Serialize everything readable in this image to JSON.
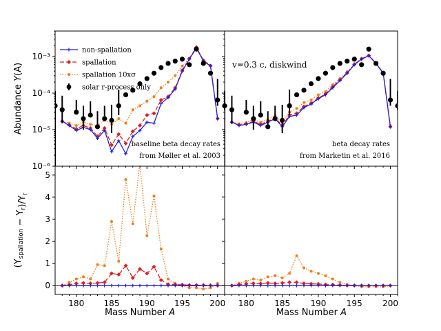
{
  "chart_data": [
    {
      "type": "line",
      "panel": "top-left",
      "yscale": "log",
      "xlim": [
        177,
        201
      ],
      "ylim": [
        1e-06,
        0.005
      ],
      "ylabel": "Abundance Y(A)",
      "xlabel": "",
      "yticks": [
        "10⁻⁶",
        "10⁻⁵",
        "10⁻⁴",
        "10⁻³"
      ],
      "annotation": [
        "baseline beta decay rates",
        "from Møller et al. 2003"
      ],
      "legend": {
        "position": "top-left"
      },
      "x": [
        178,
        179,
        180,
        181,
        182,
        183,
        184,
        185,
        186,
        187,
        188,
        189,
        190,
        191,
        192,
        193,
        194,
        195,
        196,
        197,
        198,
        199,
        200
      ],
      "series": [
        {
          "name": "non-spallation",
          "color": "#1f1fe0",
          "values": [
            1.7e-05,
            1.3e-05,
            9.5e-06,
            1.15e-05,
            1e-05,
            5.8e-06,
            9.5e-06,
            2.5e-06,
            5e-06,
            2.2e-06,
            6.5e-06,
            9.5e-06,
            1.6e-05,
            1.5e-05,
            5.2e-05,
            7.5e-05,
            0.00013,
            0.0004,
            0.00085,
            0.0017,
            0.00075,
            0.00055,
            2e-05
          ]
        },
        {
          "name": "spallation",
          "color": "#e01f1f",
          "values": [
            1.7e-05,
            1.35e-05,
            1.05e-05,
            1.3e-05,
            1.1e-05,
            6.5e-06,
            1.1e-05,
            3.8e-06,
            7.5e-06,
            4.2e-06,
            9e-06,
            1.3e-05,
            2.5e-05,
            2.8e-05,
            6.5e-05,
            8e-05,
            0.00014,
            0.00042,
            0.00088,
            0.0018,
            0.00078,
            0.00056,
            2e-05
          ]
        },
        {
          "name": "spallation 10xσ",
          "color": "#f07e1a",
          "values": [
            1.7e-05,
            1.5e-05,
            1.3e-05,
            1.6e-05,
            1.4e-05,
            1.3e-05,
            1.8e-05,
            1.4e-05,
            2e-05,
            1.5e-05,
            3.5e-05,
            4.5e-05,
            6e-05,
            8e-05,
            0.00014,
            0.0002,
            0.0003,
            0.00055,
            0.0009,
            0.00175,
            0.0008,
            0.00058,
            2e-05
          ]
        },
        {
          "name": "solar r-process only",
          "color": "#000000",
          "x": [
            177,
            178,
            180,
            181,
            182,
            183,
            184,
            185,
            186,
            187,
            188,
            189,
            190,
            191,
            192,
            193,
            194,
            195,
            196,
            197,
            198,
            199,
            200,
            201
          ],
          "values": [
            4.5e-05,
            3.5e-05,
            3e-05,
            2e-05,
            2.5e-05,
            1.2e-05,
            2e-05,
            1.8e-05,
            4.5e-05,
            9e-05,
            0.00012,
            0.00018,
            0.00025,
            0.00035,
            0.0005,
            0.00065,
            0.00075,
            0.00085,
            0.0006,
            0.0016,
            0.00065,
            0.00035,
            6.5e-05,
            4.5e-05
          ],
          "err_low": [
            4.5e-05,
            2e-05,
            1e-06,
            1e-05,
            1e-06,
            1e-06,
            1e-06,
            1e-05,
            2e-05,
            0,
            0,
            0,
            0,
            0,
            0,
            0,
            0,
            0,
            0,
            0,
            0,
            0,
            2e-05,
            1e-05
          ],
          "err_high": [
            7e-05,
            5e-05,
            3.5e-05,
            2.5e-05,
            3.5e-05,
            2e-05,
            2.5e-05,
            3e-05,
            8e-05,
            0,
            0,
            0,
            0,
            0,
            0,
            0,
            0,
            0,
            0,
            0,
            0,
            0,
            0.00018,
            7e-05
          ]
        }
      ]
    },
    {
      "type": "line",
      "panel": "top-right",
      "yscale": "log",
      "xlim": [
        177,
        201
      ],
      "ylim": [
        1e-06,
        0.005
      ],
      "annotation_top": "v=0.3 c, diskwind",
      "annotation": [
        "beta decay rates",
        "from Marketin et al. 2016"
      ],
      "x": [
        178,
        179,
        180,
        181,
        182,
        183,
        184,
        185,
        186,
        187,
        188,
        189,
        190,
        191,
        192,
        193,
        194,
        195,
        196,
        197,
        198,
        199,
        200
      ],
      "series": [
        {
          "name": "non-spallation",
          "color": "#1f1fe0",
          "values": [
            1.6e-05,
            1.3e-05,
            1.4e-05,
            1.6e-05,
            1.3e-05,
            1.6e-05,
            2e-05,
            1.2e-05,
            2.3e-05,
            2.5e-05,
            4e-05,
            5e-05,
            7e-05,
            9e-05,
            0.00014,
            0.00022,
            0.00035,
            0.0006,
            0.00085,
            0.00105,
            0.00065,
            0.00035,
            1.2e-05
          ]
        },
        {
          "name": "spallation",
          "color": "#e01f1f",
          "values": [
            1.6e-05,
            1.35e-05,
            1.45e-05,
            1.7e-05,
            1.4e-05,
            1.7e-05,
            2.1e-05,
            1.3e-05,
            2.5e-05,
            2.8e-05,
            4.3e-05,
            5.3e-05,
            7.3e-05,
            9.5e-05,
            0.00015,
            0.00023,
            0.00036,
            0.00061,
            0.00087,
            0.00107,
            0.00066,
            0.00036,
            1.2e-05
          ]
        },
        {
          "name": "spallation 10xσ",
          "color": "#f07e1a",
          "values": [
            1.6e-05,
            1.45e-05,
            1.55e-05,
            1.9e-05,
            1.6e-05,
            1.9e-05,
            2.4e-05,
            1.6e-05,
            3e-05,
            3.8e-05,
            5.5e-05,
            6.5e-05,
            9e-05,
            0.00011,
            0.00017,
            0.00025,
            0.00038,
            0.00063,
            0.00089,
            0.00108,
            0.00067,
            0.00037,
            1.3e-05
          ]
        },
        {
          "name": "solar r-process only",
          "color": "#000000",
          "x": [
            177,
            178,
            180,
            181,
            182,
            183,
            184,
            185,
            186,
            187,
            188,
            189,
            190,
            191,
            192,
            193,
            194,
            195,
            196,
            197,
            198,
            199,
            200,
            201
          ],
          "values": [
            4.5e-05,
            3.5e-05,
            3e-05,
            2e-05,
            2.5e-05,
            1.2e-05,
            2e-05,
            1.8e-05,
            4.5e-05,
            9e-05,
            0.00012,
            0.00018,
            0.00025,
            0.00035,
            0.0005,
            0.00065,
            0.00075,
            0.00085,
            0.0006,
            0.0016,
            0.00065,
            0.00035,
            6.5e-05,
            4.5e-05
          ],
          "err_low": [
            4.5e-05,
            2e-05,
            1e-06,
            1e-05,
            1e-06,
            1e-06,
            1e-06,
            1e-05,
            2e-05,
            0,
            0,
            0,
            0,
            0,
            0,
            0,
            0,
            0,
            0,
            0,
            0,
            0,
            2e-05,
            1e-05
          ],
          "err_high": [
            7e-05,
            5e-05,
            3.5e-05,
            2.5e-05,
            3.5e-05,
            2e-05,
            2.5e-05,
            3e-05,
            8e-05,
            0,
            0,
            0,
            0,
            0,
            0,
            0,
            0,
            0,
            0,
            0,
            0,
            0,
            0.00018,
            7e-05
          ]
        }
      ]
    },
    {
      "type": "line",
      "panel": "bottom-left",
      "yscale": "linear",
      "xlim": [
        177,
        201
      ],
      "ylim": [
        -0.4,
        5.4
      ],
      "ylabel": "(Y_spallation − Y_r)/Y_r",
      "xlabel": "Mass Number A",
      "xticks": [
        180,
        185,
        190,
        195,
        200
      ],
      "yticks": [
        0,
        1,
        2,
        3,
        4,
        5
      ],
      "x": [
        178,
        179,
        180,
        181,
        182,
        183,
        184,
        185,
        186,
        187,
        188,
        189,
        190,
        191,
        192,
        193,
        194,
        195,
        196,
        197,
        198,
        199,
        200
      ],
      "series": [
        {
          "name": "non-spallation",
          "color": "#1f1fe0",
          "values": [
            0,
            0,
            0,
            0,
            0,
            0,
            0,
            0,
            0,
            0,
            0,
            0,
            0,
            0,
            0,
            0,
            0,
            0,
            0,
            0,
            0,
            0,
            0
          ]
        },
        {
          "name": "spallation",
          "color": "#e01f1f",
          "values": [
            0.0,
            0.04,
            0.1,
            0.12,
            0.1,
            0.12,
            0.15,
            0.55,
            0.5,
            0.9,
            0.35,
            0.75,
            0.55,
            0.85,
            0.25,
            0.06,
            0.05,
            0.04,
            0.02,
            0.02,
            0.02,
            0.01,
            0.01
          ]
        },
        {
          "name": "spallation 10xσ",
          "color": "#f07e1a",
          "values": [
            0.0,
            0.15,
            0.3,
            0.4,
            0.3,
            0.95,
            0.9,
            2.9,
            1.1,
            4.8,
            2.8,
            5.5,
            2.25,
            4.05,
            1.65,
            0.3,
            0.1,
            0.0,
            -0.1,
            -0.1,
            -0.15,
            -0.1,
            0.1
          ]
        }
      ]
    },
    {
      "type": "line",
      "panel": "bottom-right",
      "yscale": "linear",
      "xlim": [
        177,
        201
      ],
      "ylim": [
        -0.4,
        5.4
      ],
      "xlabel": "Mass Number A",
      "xticks": [
        180,
        185,
        190,
        195,
        200
      ],
      "x": [
        178,
        179,
        180,
        181,
        182,
        183,
        184,
        185,
        186,
        187,
        188,
        189,
        190,
        191,
        192,
        193,
        194,
        195,
        196,
        197,
        198,
        199,
        200
      ],
      "series": [
        {
          "name": "non-spallation",
          "color": "#1f1fe0",
          "values": [
            0,
            0,
            0,
            0,
            0,
            0,
            0,
            0,
            0,
            0,
            0,
            0,
            0,
            0,
            0,
            0,
            0,
            0,
            0,
            0,
            0,
            0,
            0
          ]
        },
        {
          "name": "spallation",
          "color": "#e01f1f",
          "values": [
            0.0,
            0.05,
            0.08,
            0.1,
            0.09,
            0.12,
            0.1,
            0.12,
            0.15,
            0.15,
            0.1,
            0.08,
            0.07,
            0.05,
            0.04,
            0.02,
            0.01,
            0.01,
            0.0,
            0.0,
            0.0,
            0.0,
            0.0
          ]
        },
        {
          "name": "spallation 10xσ",
          "color": "#f07e1a",
          "values": [
            0.0,
            0.1,
            0.2,
            0.3,
            0.25,
            0.4,
            0.45,
            0.35,
            0.55,
            1.35,
            0.8,
            0.65,
            0.55,
            0.45,
            0.3,
            0.15,
            0.05,
            0.0,
            -0.05,
            -0.05,
            -0.05,
            -0.05,
            0.0
          ]
        }
      ]
    }
  ],
  "labels": {
    "y_top": "Abundance",
    "y_top_sym": "Y",
    "y_top_arg": "(A)",
    "y_bot": "(Y",
    "y_bot_sub1": "spallation",
    "y_bot_mid": " − Y",
    "y_bot_sub2": "r",
    "y_bot_end": ")/Y",
    "y_bot_sub3": "r",
    "x_title": "Mass Number",
    "x_sym": "A"
  }
}
